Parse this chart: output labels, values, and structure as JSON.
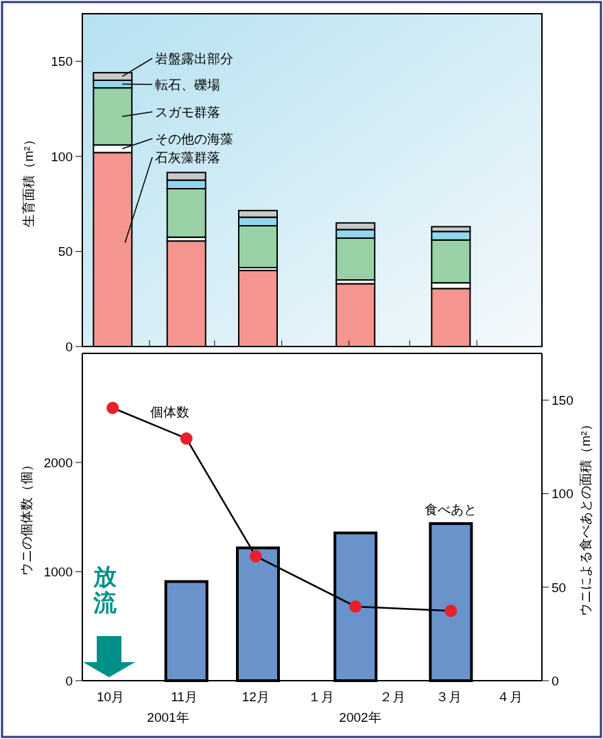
{
  "chart_data": [
    {
      "type": "bar",
      "stacked": true,
      "ylabel": "生育面積（m²）",
      "x": [
        "2001-10-15",
        "2001-11-18",
        "2001-12-21",
        "2002-02-04",
        "2002-03-20"
      ],
      "series": [
        {
          "name": "石灰藻群落",
          "color": "#f4968f",
          "values": [
            102,
            55.5,
            40,
            33,
            30.5
          ]
        },
        {
          "name": "その他の海藻",
          "color": "#ffffff",
          "values": [
            4,
            2,
            1.5,
            2,
            3
          ]
        },
        {
          "name": "スガモ群落",
          "color": "#98d1a6",
          "values": [
            30,
            25.5,
            22,
            22,
            22.5
          ]
        },
        {
          "name": "転石、礫場",
          "color": "#92d5ee",
          "values": [
            4,
            4.5,
            4.5,
            4.5,
            4.5
          ]
        },
        {
          "name": "岩盤露出部分",
          "color": "#c8c8c8",
          "values": [
            4,
            4,
            3.5,
            3.5,
            2.5
          ]
        }
      ],
      "xlim": [
        "2001-10-01",
        "2002-05-01"
      ],
      "xticks": [
        {
          "value": "2001-11-01",
          "label": null
        },
        {
          "value": "2001-12-01",
          "label": null
        },
        {
          "value": "2002-01-01",
          "label": null
        },
        {
          "value": "2002-02-01",
          "label": null
        },
        {
          "value": "2002-03-01",
          "label": null
        },
        {
          "value": "2002-04-01",
          "label": null
        }
      ],
      "ylim": [
        0,
        175
      ],
      "yticks": [
        0,
        50,
        100,
        150
      ],
      "tick_labels": "y",
      "legend": "top left"
    },
    {
      "type": "bar",
      "ylabel": "ウニの個体数（個）",
      "y2label": "ウニによる食べあとの面積（m²）",
      "series": [
        {
          "name": "食べあと",
          "type": "bar",
          "axis": "y2",
          "color": "#6a93cc",
          "x": [
            "2001-11-18",
            "2001-12-21",
            "2002-02-04",
            "2002-03-20"
          ],
          "values": [
            53,
            71,
            79,
            84
          ]
        },
        {
          "name": "個体数",
          "type": "line",
          "axis": "y",
          "color": "#e8202a",
          "marker": "circle",
          "x": [
            "2001-10-15",
            "2001-11-18",
            "2001-12-20",
            "2002-02-04",
            "2002-03-20"
          ],
          "values": [
            2500,
            2220,
            1140,
            680,
            640
          ]
        }
      ],
      "xlim": [
        "2001-10-01",
        "2002-05-01"
      ],
      "xticks": [
        {
          "value": "2001-10-14",
          "label": "10月"
        },
        {
          "value": "2001-11-17",
          "label": "11月"
        },
        {
          "value": "2001-12-20",
          "label": "12月"
        },
        {
          "value": "2002-01-19",
          "label": "１月"
        },
        {
          "value": "2002-02-21",
          "label": "２月"
        },
        {
          "value": "2002-03-19",
          "label": "３月"
        },
        {
          "value": "2002-04-16",
          "label": "４月"
        }
      ],
      "ylim": [
        0,
        3000
      ],
      "yticks": [
        0,
        1000,
        2000
      ],
      "y2lim": [
        0,
        175
      ],
      "y2ticks": [
        0,
        50,
        100,
        150
      ],
      "annotations": [
        "2001年",
        "2002年",
        "放流"
      ]
    }
  ]
}
